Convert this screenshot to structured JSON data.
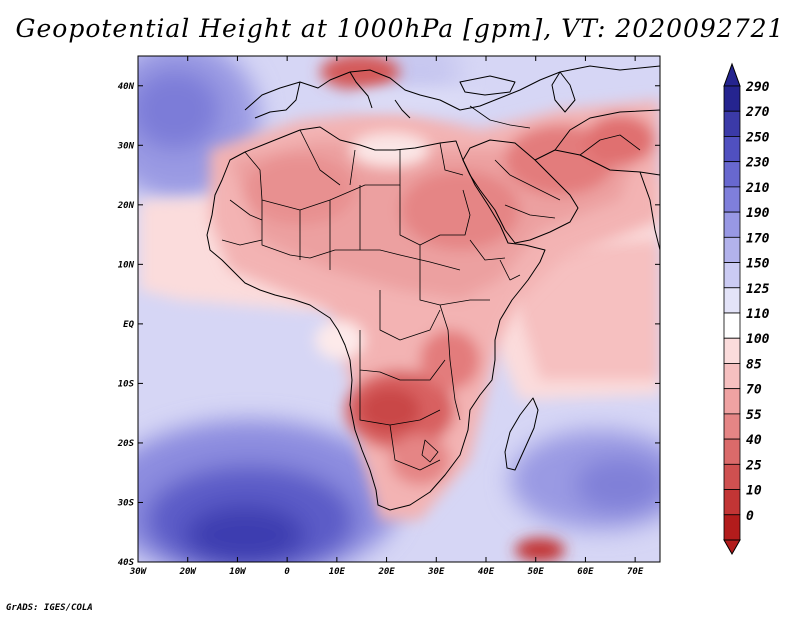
{
  "title": "Geopotential Height at 1000hPa [gpm], VT: 2020092721",
  "footer": "GrADS: IGES/COLA",
  "map": {
    "variable": "Geopotential Height",
    "level": "1000hPa",
    "units": "gpm",
    "valid_time": "2020092721",
    "lon_range": [
      -30,
      75
    ],
    "lat_range": [
      -40,
      45
    ],
    "lat_ticks": [
      {
        "value": 40,
        "label": "40N"
      },
      {
        "value": 30,
        "label": "30N"
      },
      {
        "value": 20,
        "label": "20N"
      },
      {
        "value": 10,
        "label": "10N"
      },
      {
        "value": 0,
        "label": "EQ"
      },
      {
        "value": -10,
        "label": "10S"
      },
      {
        "value": -20,
        "label": "20S"
      },
      {
        "value": -30,
        "label": "30S"
      },
      {
        "value": -40,
        "label": "40S"
      }
    ],
    "lon_ticks": [
      {
        "value": -30,
        "label": "30W"
      },
      {
        "value": -20,
        "label": "20W"
      },
      {
        "value": -10,
        "label": "10W"
      },
      {
        "value": 0,
        "label": "0"
      },
      {
        "value": 10,
        "label": "10E"
      },
      {
        "value": 20,
        "label": "20E"
      },
      {
        "value": 30,
        "label": "30E"
      },
      {
        "value": 40,
        "label": "40E"
      },
      {
        "value": 50,
        "label": "50E"
      },
      {
        "value": 60,
        "label": "60E"
      },
      {
        "value": 70,
        "label": "70E"
      }
    ]
  },
  "colorbar": {
    "levels": [
      "290",
      "270",
      "250",
      "230",
      "210",
      "190",
      "170",
      "150",
      "125",
      "110",
      "100",
      "85",
      "70",
      "55",
      "40",
      "25",
      "10",
      "0"
    ],
    "colors": [
      "#25248f",
      "#3b3aa8",
      "#5050c0",
      "#6868cf",
      "#7f7fdb",
      "#9898e4",
      "#b2b2ec",
      "#cbcbf3",
      "#e3e3f8",
      "#ffffff",
      "#fbdcdc",
      "#f6c0c0",
      "#efa2a2",
      "#e58585",
      "#da6a6a",
      "#cf5050",
      "#c23535",
      "#b21c1c"
    ]
  },
  "colors": {
    "background": "#ffffff",
    "ocean_low": "#4a4ab9",
    "land_high": "#e37b7b",
    "boundary": "#000000"
  }
}
